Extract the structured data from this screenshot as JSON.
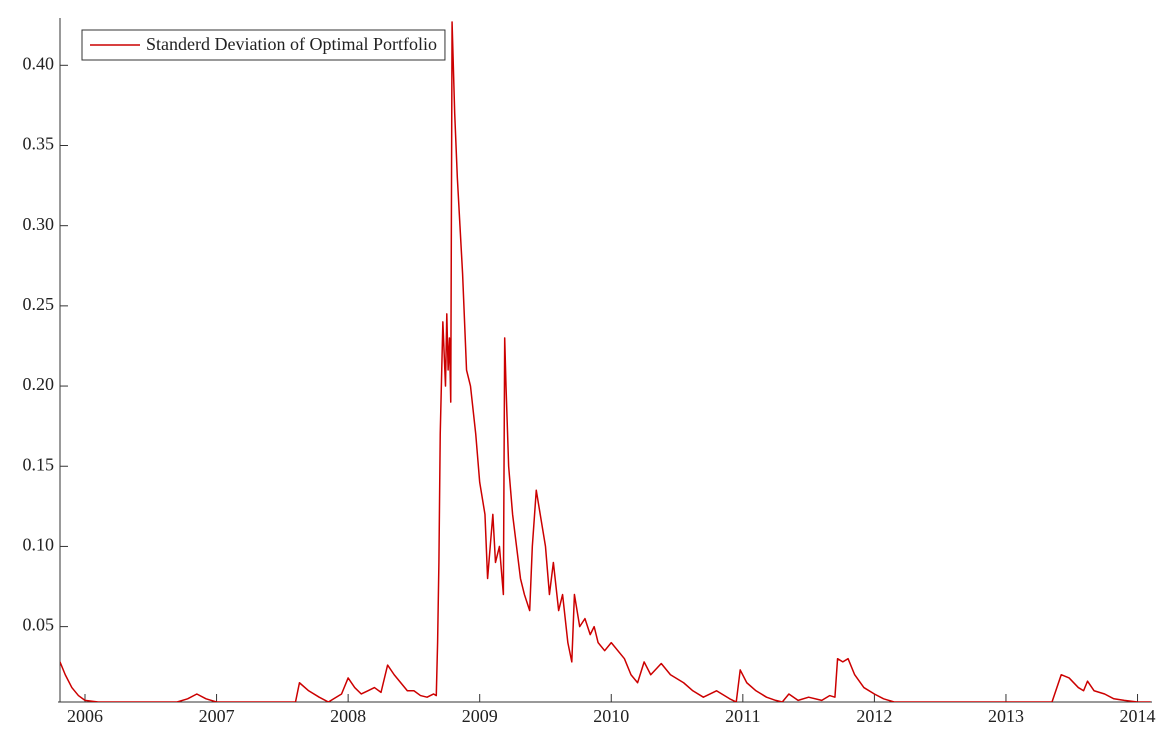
{
  "chart_data": {
    "type": "line",
    "x": [
      2005.81,
      2005.85,
      2005.9,
      2005.95,
      2006.0,
      2006.1,
      2006.3,
      2006.5,
      2006.7,
      2006.78,
      2006.85,
      2006.92,
      2007.0,
      2007.3,
      2007.6,
      2007.63,
      2007.7,
      2007.78,
      2007.85,
      2007.95,
      2008.0,
      2008.05,
      2008.1,
      2008.15,
      2008.2,
      2008.25,
      2008.3,
      2008.35,
      2008.4,
      2008.45,
      2008.5,
      2008.55,
      2008.6,
      2008.65,
      2008.67,
      2008.68,
      2008.69,
      2008.7,
      2008.72,
      2008.74,
      2008.75,
      2008.76,
      2008.77,
      2008.78,
      2008.79,
      2008.81,
      2008.83,
      2008.85,
      2008.87,
      2008.9,
      2008.93,
      2008.97,
      2009.0,
      2009.04,
      2009.06,
      2009.08,
      2009.1,
      2009.12,
      2009.15,
      2009.18,
      2009.19,
      2009.2,
      2009.22,
      2009.25,
      2009.28,
      2009.31,
      2009.34,
      2009.38,
      2009.4,
      2009.43,
      2009.46,
      2009.5,
      2009.53,
      2009.56,
      2009.6,
      2009.63,
      2009.67,
      2009.7,
      2009.72,
      2009.76,
      2009.8,
      2009.84,
      2009.87,
      2009.9,
      2009.95,
      2010.0,
      2010.1,
      2010.15,
      2010.2,
      2010.25,
      2010.3,
      2010.38,
      2010.45,
      2010.55,
      2010.62,
      2010.7,
      2010.8,
      2010.9,
      2010.95,
      2010.98,
      2011.03,
      2011.1,
      2011.18,
      2011.25,
      2011.3,
      2011.35,
      2011.42,
      2011.5,
      2011.6,
      2011.66,
      2011.7,
      2011.72,
      2011.76,
      2011.8,
      2011.85,
      2011.92,
      2012.0,
      2012.07,
      2012.15,
      2012.5,
      2013.0,
      2013.35,
      2013.42,
      2013.48,
      2013.55,
      2013.59,
      2013.62,
      2013.67,
      2013.75,
      2013.82,
      2013.9,
      2014.0,
      2014.1
    ],
    "series": [
      {
        "name": "Standerd Deviation of Optimal Portfolio",
        "color": "#cc0000",
        "values": [
          0.028,
          0.02,
          0.012,
          0.007,
          0.004,
          0.003,
          0.003,
          0.003,
          0.003,
          0.005,
          0.008,
          0.005,
          0.003,
          0.003,
          0.003,
          0.015,
          0.01,
          0.006,
          0.003,
          0.008,
          0.018,
          0.012,
          0.008,
          0.01,
          0.012,
          0.009,
          0.026,
          0.02,
          0.015,
          0.01,
          0.01,
          0.007,
          0.006,
          0.008,
          0.007,
          0.04,
          0.09,
          0.17,
          0.24,
          0.2,
          0.245,
          0.21,
          0.23,
          0.19,
          0.427,
          0.37,
          0.33,
          0.3,
          0.27,
          0.21,
          0.2,
          0.17,
          0.14,
          0.12,
          0.08,
          0.1,
          0.12,
          0.09,
          0.1,
          0.07,
          0.23,
          0.2,
          0.15,
          0.12,
          0.1,
          0.08,
          0.07,
          0.06,
          0.1,
          0.135,
          0.12,
          0.1,
          0.07,
          0.09,
          0.06,
          0.07,
          0.04,
          0.028,
          0.07,
          0.05,
          0.055,
          0.045,
          0.05,
          0.04,
          0.035,
          0.04,
          0.03,
          0.02,
          0.015,
          0.028,
          0.02,
          0.027,
          0.02,
          0.015,
          0.01,
          0.006,
          0.01,
          0.005,
          0.003,
          0.023,
          0.015,
          0.01,
          0.006,
          0.004,
          0.003,
          0.008,
          0.004,
          0.006,
          0.004,
          0.007,
          0.006,
          0.03,
          0.028,
          0.03,
          0.02,
          0.012,
          0.008,
          0.005,
          0.003,
          0.003,
          0.003,
          0.003,
          0.02,
          0.018,
          0.012,
          0.01,
          0.016,
          0.01,
          0.008,
          0.005,
          0.004,
          0.003,
          0.003
        ]
      }
    ],
    "xlim": [
      2005.81,
      2014.11
    ],
    "xticks": [
      2006,
      2007,
      2008,
      2009,
      2010,
      2011,
      2012,
      2013,
      2014
    ],
    "ylim": [
      0.003,
      0.427
    ],
    "yticks": [
      0.05,
      {
        "value": 0.1,
        "label": "0.10"
      },
      0.15,
      {
        "value": 0.2,
        "label": "0.20"
      },
      0.25,
      {
        "value": 0.3,
        "label": "0.30"
      },
      0.35,
      {
        "value": 0.4,
        "label": "0.40"
      }
    ],
    "legend": "top-left"
  }
}
